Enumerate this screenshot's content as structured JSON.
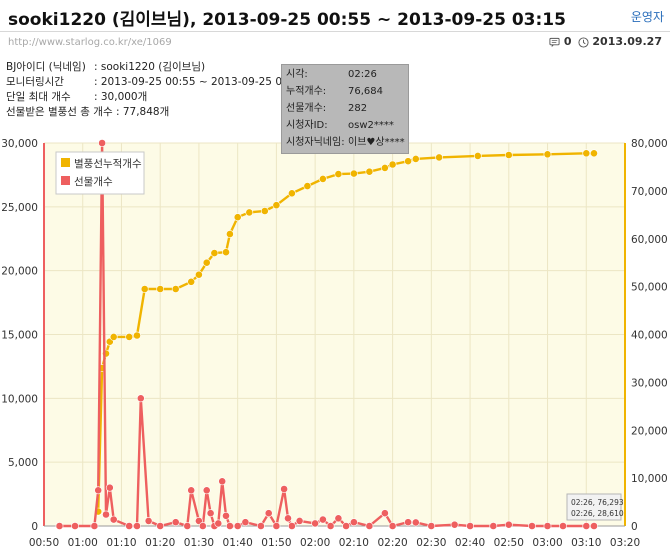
{
  "header": {
    "title": "sooki1220 (김이브님), 2013-09-25 00:55 ~ 2013-09-25 03:15",
    "ops_link": "운영자",
    "url": "http://www.starlog.co.kr/xe/1069",
    "comments": "0",
    "date": "2013.09.27"
  },
  "info": {
    "rows": [
      {
        "label": "BJ아이디 (닉네임)",
        "value": ": sooki1220 (김이브님)"
      },
      {
        "label": "모니터링시간",
        "value": ": 2013-09-25 00:55 ~ 2013-09-25 03:15"
      },
      {
        "label": "단일 최대 개수",
        "value": ": 30,000개"
      },
      {
        "label": "선물받은 별풍선 총 개수",
        "value": ": 77,848개"
      }
    ]
  },
  "tooltip": {
    "rows": [
      {
        "k": "시각:",
        "v": "02:26"
      },
      {
        "k": "누적개수:",
        "v": "76,684"
      },
      {
        "k": "선물개수:",
        "v": "282"
      },
      {
        "k": "시청자ID:",
        "v": "osw2****"
      },
      {
        "k": "시청자닉네임:",
        "v": "이브♥상****"
      }
    ]
  },
  "corner_tip": {
    "line1": "02:26, 76,293",
    "line2": "02:26, 28,610"
  },
  "colors": {
    "cumulative": "#f0b400",
    "gift": "#ee5f5f",
    "plot_bg": "#fdfbe6"
  },
  "chart_data": {
    "type": "line",
    "x_ticks": [
      "00:50",
      "01:00",
      "01:10",
      "01:20",
      "01:30",
      "01:40",
      "01:50",
      "02:00",
      "02:10",
      "02:20",
      "02:30",
      "02:40",
      "02:50",
      "03:00",
      "03:10",
      "03:20"
    ],
    "y_left": {
      "min": 0,
      "max": 30000,
      "ticks": [
        "0",
        "5,000",
        "10,000",
        "15,000",
        "20,000",
        "25,000",
        "30,000"
      ]
    },
    "y_right": {
      "min": 0,
      "max": 80000,
      "ticks": [
        "0",
        "10,000",
        "20,000",
        "30,000",
        "40,000",
        "50,000",
        "60,000",
        "70,000",
        "80,000"
      ]
    },
    "legend": {
      "placement": "top-left"
    },
    "grid": true,
    "series": [
      {
        "name": "별풍선누적개수",
        "axis": "right",
        "points": [
          [
            "01:04",
            3000
          ],
          [
            "01:05",
            33000
          ],
          [
            "01:06",
            36000
          ],
          [
            "01:07",
            38500
          ],
          [
            "01:08",
            39500
          ],
          [
            "01:12",
            39500
          ],
          [
            "01:14",
            39800
          ],
          [
            "01:16",
            49500
          ],
          [
            "01:20",
            49500
          ],
          [
            "01:24",
            49500
          ],
          [
            "01:28",
            51000
          ],
          [
            "01:30",
            52500
          ],
          [
            "01:32",
            55000
          ],
          [
            "01:34",
            57000
          ],
          [
            "01:37",
            57200
          ],
          [
            "01:38",
            61000
          ],
          [
            "01:40",
            64500
          ],
          [
            "01:43",
            65500
          ],
          [
            "01:47",
            65800
          ],
          [
            "01:50",
            67000
          ],
          [
            "01:54",
            69500
          ],
          [
            "01:58",
            71000
          ],
          [
            "02:02",
            72500
          ],
          [
            "02:06",
            73500
          ],
          [
            "02:10",
            73600
          ],
          [
            "02:14",
            74000
          ],
          [
            "02:18",
            74800
          ],
          [
            "02:20",
            75500
          ],
          [
            "02:24",
            76200
          ],
          [
            "02:26",
            76684
          ],
          [
            "02:32",
            77000
          ],
          [
            "02:42",
            77300
          ],
          [
            "02:50",
            77500
          ],
          [
            "03:00",
            77650
          ],
          [
            "03:10",
            77848
          ],
          [
            "03:12",
            77848
          ]
        ]
      },
      {
        "name": "선물개수",
        "axis": "left",
        "points": [
          [
            "00:54",
            0
          ],
          [
            "00:58",
            0
          ],
          [
            "01:03",
            0
          ],
          [
            "01:04",
            2800
          ],
          [
            "01:05",
            30000
          ],
          [
            "01:06",
            900
          ],
          [
            "01:07",
            3000
          ],
          [
            "01:08",
            500
          ],
          [
            "01:12",
            0
          ],
          [
            "01:14",
            0
          ],
          [
            "01:15",
            10000
          ],
          [
            "01:17",
            400
          ],
          [
            "01:20",
            0
          ],
          [
            "01:24",
            300
          ],
          [
            "01:27",
            0
          ],
          [
            "01:28",
            2800
          ],
          [
            "01:30",
            400
          ],
          [
            "01:31",
            0
          ],
          [
            "01:32",
            2800
          ],
          [
            "01:33",
            1000
          ],
          [
            "01:34",
            0
          ],
          [
            "01:35",
            200
          ],
          [
            "01:36",
            3500
          ],
          [
            "01:37",
            800
          ],
          [
            "01:38",
            0
          ],
          [
            "01:40",
            0
          ],
          [
            "01:42",
            300
          ],
          [
            "01:46",
            0
          ],
          [
            "01:48",
            1000
          ],
          [
            "01:50",
            0
          ],
          [
            "01:52",
            2900
          ],
          [
            "01:53",
            600
          ],
          [
            "01:54",
            0
          ],
          [
            "01:56",
            400
          ],
          [
            "02:00",
            200
          ],
          [
            "02:02",
            500
          ],
          [
            "02:04",
            0
          ],
          [
            "02:06",
            600
          ],
          [
            "02:08",
            0
          ],
          [
            "02:10",
            300
          ],
          [
            "02:14",
            0
          ],
          [
            "02:18",
            1000
          ],
          [
            "02:20",
            0
          ],
          [
            "02:24",
            300
          ],
          [
            "02:26",
            282
          ],
          [
            "02:30",
            0
          ],
          [
            "02:36",
            100
          ],
          [
            "02:40",
            0
          ],
          [
            "02:46",
            0
          ],
          [
            "02:50",
            100
          ],
          [
            "02:56",
            0
          ],
          [
            "03:00",
            0
          ],
          [
            "03:04",
            0
          ],
          [
            "03:10",
            0
          ],
          [
            "03:12",
            0
          ]
        ]
      }
    ]
  }
}
